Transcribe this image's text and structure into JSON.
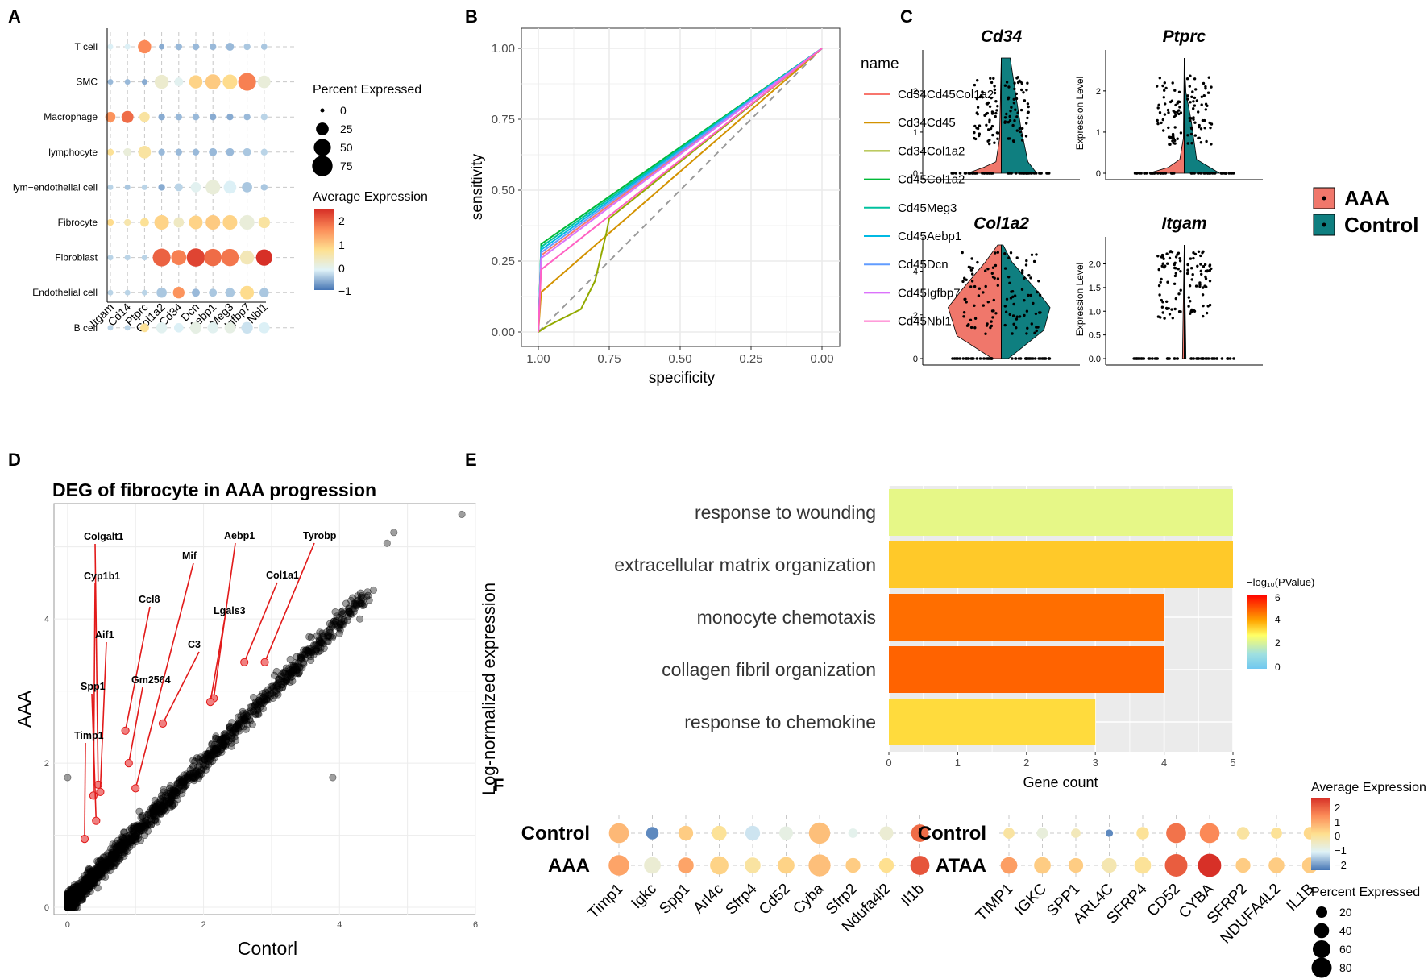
{
  "panels": {
    "A": "A",
    "B": "B",
    "C": "C",
    "D": "D",
    "E": "E",
    "F": "F"
  },
  "chart_data": [
    {
      "id": "A",
      "type": "dotplot",
      "rows": [
        "T cell",
        "SMC",
        "Macrophage",
        "lymphocyte",
        "lym−endothelial cell",
        "Fibrocyte",
        "Fibroblast",
        "Endothelial cell",
        "B cell"
      ],
      "genes": [
        "Itgam",
        "Cd14",
        "Ptprc",
        "Col1a2",
        "Cd34",
        "Dcn",
        "Aebp1",
        "Meg3",
        "Igfbp7",
        "Nbl1"
      ],
      "size": [
        [
          3,
          3,
          28,
          3,
          5,
          5,
          5,
          8,
          5,
          4
        ],
        [
          3,
          3,
          3,
          32,
          10,
          28,
          38,
          35,
          55,
          25
        ],
        [
          15,
          22,
          15,
          5,
          5,
          5,
          5,
          5,
          5,
          5
        ],
        [
          5,
          8,
          25,
          5,
          5,
          5,
          8,
          8,
          8,
          5
        ],
        [
          3,
          3,
          3,
          5,
          8,
          15,
          35,
          25,
          15,
          5
        ],
        [
          5,
          5,
          10,
          35,
          15,
          30,
          35,
          35,
          35,
          20
        ],
        [
          3,
          3,
          3,
          55,
          38,
          58,
          52,
          52,
          32,
          45
        ],
        [
          3,
          3,
          3,
          15,
          20,
          8,
          8,
          12,
          30,
          12
        ],
        [
          3,
          3,
          10,
          18,
          12,
          20,
          18,
          18,
          20,
          18
        ]
      ],
      "expr": [
        [
          -0.3,
          -0.3,
          1.6,
          -0.8,
          -0.7,
          -0.7,
          -0.7,
          -0.7,
          -0.6,
          -0.6
        ],
        [
          -0.7,
          -0.7,
          -0.8,
          0.1,
          -0.2,
          0.8,
          0.9,
          0.7,
          1.7,
          0.0
        ],
        [
          1.5,
          1.9,
          0.5,
          -0.8,
          -0.7,
          -0.7,
          -0.8,
          -0.8,
          -0.7,
          -0.5
        ],
        [
          0.6,
          0.0,
          0.5,
          -0.7,
          -0.7,
          -0.7,
          -0.7,
          -0.7,
          -0.6,
          -0.5
        ],
        [
          -0.5,
          -0.6,
          -0.5,
          -0.8,
          -0.5,
          -0.2,
          0.0,
          -0.3,
          -0.6,
          -0.6
        ],
        [
          0.7,
          0.4,
          0.6,
          0.8,
          0.2,
          0.8,
          0.9,
          0.8,
          0.0,
          0.5
        ],
        [
          -0.5,
          -0.5,
          -0.5,
          2.0,
          1.7,
          2.3,
          1.9,
          1.8,
          0.3,
          2.5
        ],
        [
          -0.5,
          -0.5,
          -0.5,
          -0.6,
          1.5,
          -0.7,
          -0.6,
          -0.6,
          0.7,
          -0.6
        ],
        [
          -0.5,
          -0.5,
          0.6,
          -0.2,
          -0.3,
          -0.1,
          -0.2,
          -0.1,
          -0.4,
          -0.3
        ]
      ],
      "legend_size": {
        "title": "Percent Expressed",
        "values": [
          0,
          25,
          50,
          75
        ]
      },
      "legend_color": {
        "title": "Average Expression",
        "ticks": [
          "2",
          "1",
          "0",
          "−1"
        ]
      }
    },
    {
      "id": "B",
      "type": "line",
      "xlabel": "specificity",
      "ylabel": "sensitivity",
      "xticks": [
        "1.00",
        "0.75",
        "0.50",
        "0.25",
        "0.00"
      ],
      "yticks": [
        "0.00",
        "0.25",
        "0.50",
        "0.75",
        "1.00"
      ],
      "legend_title": "name",
      "series": [
        {
          "name": "Cd34Cd45Col1a2",
          "color": "#f8766d",
          "points": [
            [
              1,
              0
            ],
            [
              0.99,
              0.27
            ],
            [
              0,
              1
            ]
          ]
        },
        {
          "name": "Cd34Cd45",
          "color": "#d39200",
          "points": [
            [
              1,
              0
            ],
            [
              0.99,
              0.14
            ],
            [
              0,
              1
            ]
          ]
        },
        {
          "name": "Cd34Col1a2",
          "color": "#93aa00",
          "points": [
            [
              1,
              0
            ],
            [
              0.97,
              0.02
            ],
            [
              0.85,
              0.08
            ],
            [
              0.8,
              0.18
            ],
            [
              0.76,
              0.35
            ],
            [
              0.75,
              0.4
            ],
            [
              0,
              1
            ]
          ]
        },
        {
          "name": "Cd45Col1a2",
          "color": "#00ba38",
          "points": [
            [
              1,
              0
            ],
            [
              0.99,
              0.31
            ],
            [
              0,
              1
            ]
          ]
        },
        {
          "name": "Cd45Meg3",
          "color": "#00c19f",
          "points": [
            [
              1,
              0
            ],
            [
              0.99,
              0.3
            ],
            [
              0,
              1
            ]
          ]
        },
        {
          "name": "Cd45Aebp1",
          "color": "#00b9e3",
          "points": [
            [
              1,
              0
            ],
            [
              0.99,
              0.29
            ],
            [
              0,
              1
            ]
          ]
        },
        {
          "name": "Cd45Dcn",
          "color": "#619cff",
          "points": [
            [
              1,
              0
            ],
            [
              0.99,
              0.28
            ],
            [
              0,
              1
            ]
          ]
        },
        {
          "name": "Cd45Igfbp7",
          "color": "#db72fb",
          "points": [
            [
              1,
              0
            ],
            [
              0.99,
              0.26
            ],
            [
              0,
              1
            ]
          ]
        },
        {
          "name": "Cd45Nbl1",
          "color": "#ff61c3",
          "points": [
            [
              1,
              0
            ],
            [
              0.99,
              0.22
            ],
            [
              0,
              1
            ]
          ]
        }
      ]
    },
    {
      "id": "C",
      "type": "violin",
      "legend": [
        {
          "label": "AAA",
          "color": "#f0776b"
        },
        {
          "label": "Control",
          "color": "#0f7f80"
        }
      ],
      "ylabel": "Expression Level",
      "plots": [
        {
          "title": "Cd34",
          "yticks": [
            "0",
            "1",
            "2"
          ],
          "ymax": 2.8
        },
        {
          "title": "Ptprc",
          "yticks": [
            "0",
            "1",
            "2"
          ],
          "ymax": 2.8
        },
        {
          "title": "Col1a2",
          "yticks": [
            "0",
            "2",
            "4"
          ],
          "ymax": 5.2
        },
        {
          "title": "Itgam",
          "yticks": [
            "0.0",
            "0.5",
            "1.0",
            "1.5",
            "2.0"
          ],
          "ymax": 2.4
        }
      ]
    },
    {
      "id": "D",
      "type": "scatter",
      "title": "DEG of fibrocyte in AAA progression",
      "xlabel": "Contorl",
      "ylabel": "AAA",
      "xticks": [
        "0",
        "2",
        "4",
        "6"
      ],
      "yticks": [
        "0",
        "2",
        "4"
      ],
      "xlim": [
        -0.2,
        6.0
      ],
      "ylim": [
        -0.1,
        5.6
      ],
      "labeled_genes": [
        {
          "label": "Colgalt1",
          "x": 0.45,
          "y": 1.7
        },
        {
          "label": "Cyp1b1",
          "x": 0.38,
          "y": 1.55
        },
        {
          "label": "Aif1",
          "x": 0.48,
          "y": 1.6
        },
        {
          "label": "Spp1",
          "x": 0.42,
          "y": 1.2
        },
        {
          "label": "Timp1",
          "x": 0.25,
          "y": 0.95
        },
        {
          "label": "Ccl8",
          "x": 0.85,
          "y": 2.45
        },
        {
          "label": "Gm2564",
          "x": 0.9,
          "y": 2.0
        },
        {
          "label": "Mif",
          "x": 1.0,
          "y": 1.65
        },
        {
          "label": "C3",
          "x": 1.4,
          "y": 2.55
        },
        {
          "label": "Aebp1",
          "x": 2.15,
          "y": 2.9
        },
        {
          "label": "Lgals3",
          "x": 2.1,
          "y": 2.85
        },
        {
          "label": "Col1a1",
          "x": 2.6,
          "y": 3.4
        },
        {
          "label": "Tyrobp",
          "x": 2.9,
          "y": 3.4
        }
      ]
    },
    {
      "id": "E",
      "type": "bar",
      "categories": [
        "response to wounding",
        "extracellular matrix organization",
        "monocyte chemotaxis",
        "collagen fibril organization",
        "response to chemokine"
      ],
      "values": [
        5,
        5,
        4,
        4,
        3
      ],
      "pvalue": [
        2.6,
        3.9,
        5.0,
        5.1,
        3.6
      ],
      "xlabel": "Gene count",
      "xticks": [
        "0",
        "1",
        "2",
        "3",
        "4",
        "5"
      ],
      "xlim": [
        0,
        5
      ],
      "legend_title": "−log₁₀(PValue)",
      "legend_ticks": [
        "6",
        "4",
        "2",
        "0"
      ],
      "ylabel": "Log-normalized expression"
    },
    {
      "id": "F",
      "type": "dotplot",
      "left": {
        "rows": [
          "Control",
          "AAA"
        ],
        "genes": [
          "Timp1",
          "Igkc",
          "Spp1",
          "Arl4c",
          "Sfrp4",
          "Cd52",
          "Cyba",
          "Sfrp2",
          "Ndufa4l2",
          "Il1b"
        ],
        "size": [
          [
            60,
            20,
            30,
            30,
            30,
            25,
            70,
            10,
            25,
            45
          ],
          [
            65,
            40,
            35,
            50,
            35,
            40,
            75,
            30,
            30,
            55
          ]
        ],
        "expr": [
          [
            0.9,
            -2.0,
            0.6,
            0.2,
            -1.1,
            -0.7,
            0.8,
            -0.8,
            -0.5,
            2.0
          ],
          [
            1.2,
            -0.5,
            1.2,
            0.5,
            0.1,
            0.5,
            0.8,
            0.6,
            0.3,
            2.3
          ]
        ]
      },
      "right": {
        "rows": [
          "Control",
          "ATAA"
        ],
        "genes": [
          "TIMP1",
          "IGKC",
          "SPP1",
          "ARL4C",
          "SFRP4",
          "CD52",
          "CYBA",
          "SFRP2",
          "NDUFA4L2",
          "IL1B"
        ],
        "size": [
          [
            15,
            15,
            10,
            5,
            20,
            60,
            60,
            20,
            15,
            20
          ],
          [
            40,
            40,
            30,
            30,
            40,
            80,
            85,
            30,
            35,
            35
          ]
        ],
        "expr": [
          [
            0.1,
            -0.6,
            -0.2,
            -2.0,
            0.2,
            1.9,
            1.6,
            0.1,
            0.2,
            0.4
          ],
          [
            1.3,
            0.6,
            0.6,
            -0.1,
            0.2,
            2.2,
            2.8,
            0.6,
            0.6,
            0.6
          ]
        ]
      },
      "legend_color": {
        "title": "Average Expression",
        "ticks": [
          "2",
          "1",
          "0",
          "−1",
          "−2"
        ]
      },
      "legend_size": {
        "title": "Percent Expressed",
        "values": [
          20,
          40,
          60,
          80
        ]
      }
    }
  ]
}
